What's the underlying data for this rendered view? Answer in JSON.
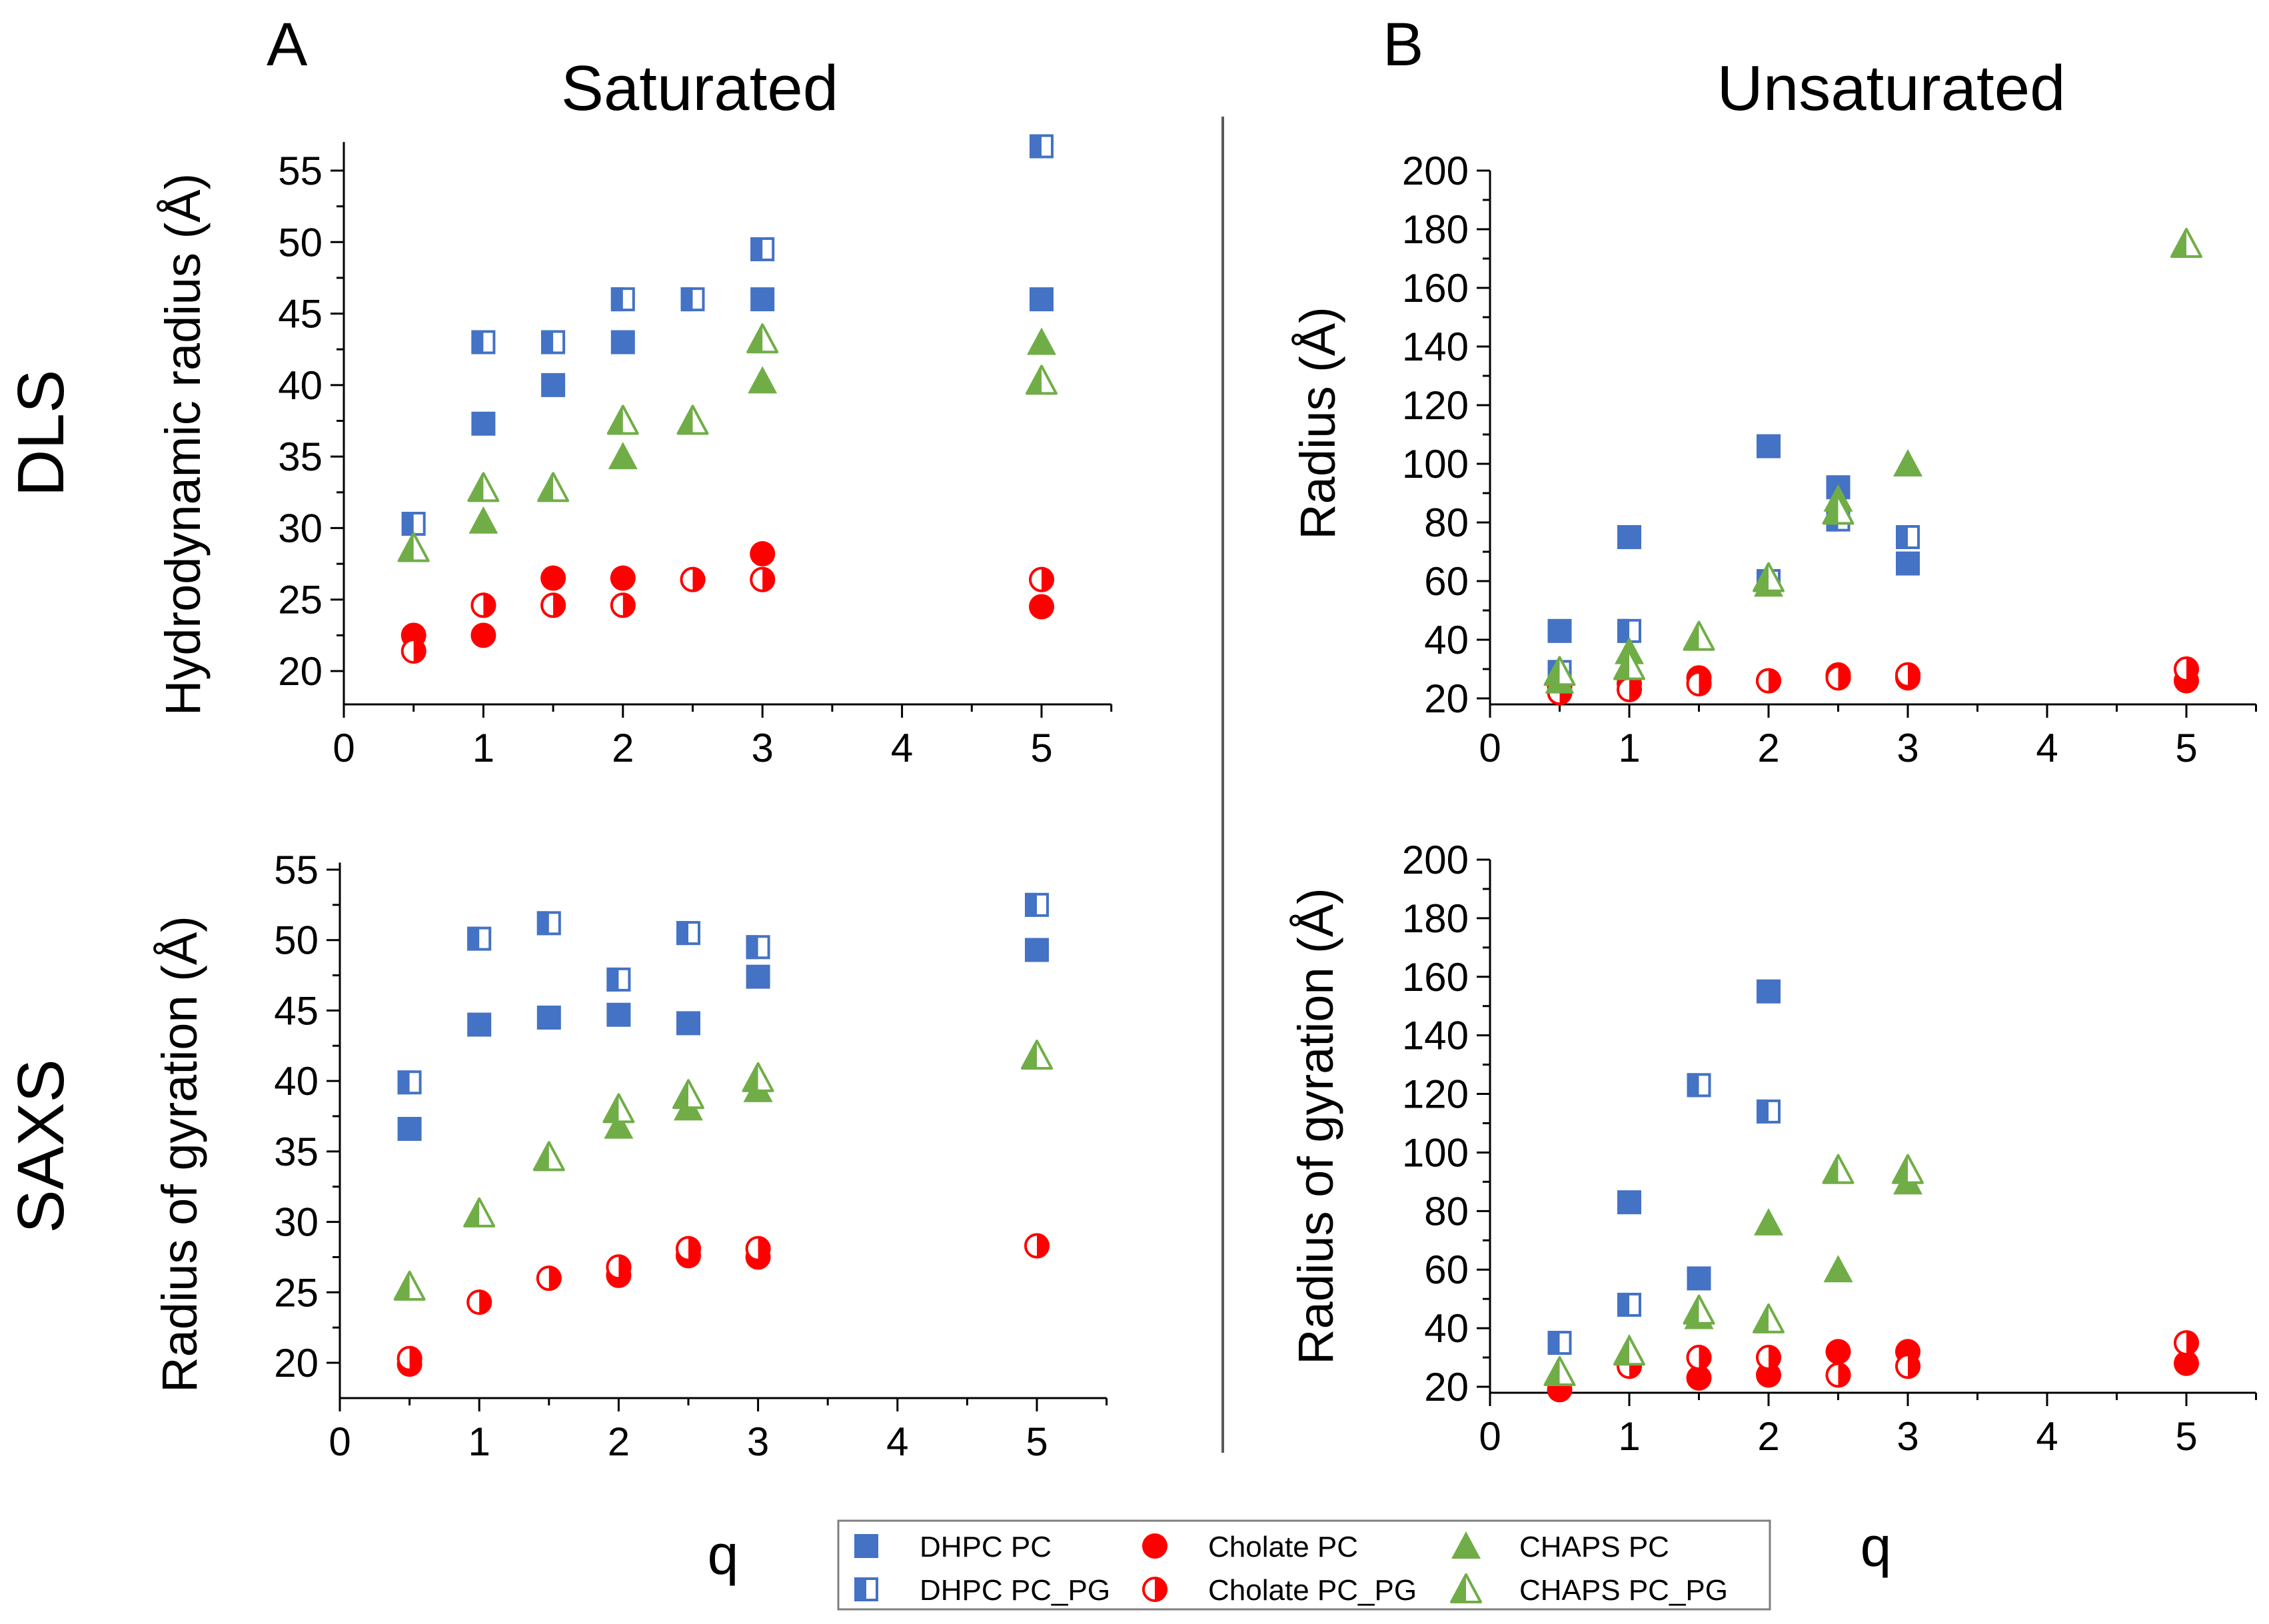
{
  "colors": {
    "dhpc": "#4472C4",
    "cholate": "#FF0000",
    "chaps": "#70AD47",
    "axis": "#000000",
    "divider": "#595959"
  },
  "panel_letters": [
    "A",
    "B"
  ],
  "column_titles": [
    "Saturated",
    "Unsaturated"
  ],
  "row_labels": [
    "DLS",
    "SAXS"
  ],
  "x_axis_label": "q",
  "legend": {
    "entries": [
      {
        "label": "DHPC PC",
        "marker": "filled-square",
        "color_key": "dhpc"
      },
      {
        "label": "DHPC PC_PG",
        "marker": "half-square",
        "color_key": "dhpc"
      },
      {
        "label": "Cholate PC",
        "marker": "filled-circle",
        "color_key": "cholate"
      },
      {
        "label": "Cholate PC_PG",
        "marker": "half-circle",
        "color_key": "cholate"
      },
      {
        "label": "CHAPS PC",
        "marker": "filled-triangle",
        "color_key": "chaps"
      },
      {
        "label": "CHAPS PC_PG",
        "marker": "half-triangle",
        "color_key": "chaps"
      }
    ]
  },
  "chart_data": [
    {
      "id": "dls-saturated",
      "type": "scatter",
      "title": "Saturated",
      "row": "DLS",
      "xlabel": "q",
      "ylabel": "Hydrodynamic radius (Å)",
      "xlim": [
        0,
        5.5
      ],
      "ylim": [
        17.5,
        57
      ],
      "xticks": [
        0,
        1,
        2,
        3,
        4,
        5
      ],
      "yticks": [
        20,
        25,
        30,
        35,
        40,
        45,
        50,
        55
      ],
      "series": [
        {
          "name": "DHPC PC",
          "x": [
            1,
            1.5,
            2,
            3,
            5
          ],
          "y": [
            37.3,
            40,
            43,
            46,
            46
          ]
        },
        {
          "name": "DHPC PC_PG",
          "x": [
            0.5,
            1,
            1.5,
            2,
            2.5,
            3,
            5
          ],
          "y": [
            30.3,
            43,
            43,
            46,
            46,
            49.5,
            56.7
          ]
        },
        {
          "name": "Cholate PC",
          "x": [
            0.5,
            1,
            1.5,
            2,
            3,
            5
          ],
          "y": [
            22.5,
            22.5,
            26.5,
            26.5,
            28.2,
            24.5
          ]
        },
        {
          "name": "Cholate PC_PG",
          "x": [
            0.5,
            1,
            1.5,
            2,
            2.5,
            3,
            5
          ],
          "y": [
            21.4,
            24.6,
            24.6,
            24.6,
            26.4,
            26.4,
            26.4
          ]
        },
        {
          "name": "CHAPS PC",
          "x": [
            1,
            2,
            3,
            5
          ],
          "y": [
            30.5,
            35,
            40.3,
            43
          ]
        },
        {
          "name": "CHAPS PC_PG",
          "x": [
            0.5,
            1,
            1.5,
            2,
            2.5,
            3,
            5
          ],
          "y": [
            28.6,
            32.8,
            32.8,
            37.5,
            37.5,
            43.2,
            40.3
          ]
        }
      ]
    },
    {
      "id": "dls-unsaturated",
      "type": "scatter",
      "title": "Unsaturated",
      "row": "DLS",
      "xlabel": "q",
      "ylabel": "Radius (Å)",
      "xlim": [
        0,
        5.5
      ],
      "ylim": [
        18,
        200
      ],
      "xticks": [
        0,
        1,
        2,
        3,
        4,
        5
      ],
      "yticks": [
        20,
        40,
        60,
        80,
        100,
        120,
        140,
        160,
        180,
        200
      ],
      "series": [
        {
          "name": "DHPC PC",
          "x": [
            0.5,
            1,
            2,
            2.5,
            3
          ],
          "y": [
            43,
            75,
            106,
            92,
            66
          ]
        },
        {
          "name": "DHPC PC_PG",
          "x": [
            0.5,
            1,
            2,
            2.5,
            3
          ],
          "y": [
            29,
            43,
            60,
            81,
            75
          ]
        },
        {
          "name": "Cholate PC",
          "x": [
            0.5,
            1,
            1.5,
            2,
            2.5,
            3,
            5
          ],
          "y": [
            24,
            25,
            27,
            26,
            28,
            27,
            26
          ]
        },
        {
          "name": "Cholate PC_PG",
          "x": [
            0.5,
            1,
            1.5,
            2,
            2.5,
            3,
            5
          ],
          "y": [
            22,
            23,
            25,
            26,
            27,
            28,
            30
          ]
        },
        {
          "name": "CHAPS PC",
          "x": [
            0.5,
            1,
            2,
            2.5,
            3
          ],
          "y": [
            26,
            36,
            59,
            88,
            100
          ]
        },
        {
          "name": "CHAPS PC_PG",
          "x": [
            0.5,
            1,
            1.5,
            2,
            2.5,
            5
          ],
          "y": [
            29,
            31,
            41,
            61,
            84,
            175
          ]
        }
      ]
    },
    {
      "id": "saxs-saturated",
      "type": "scatter",
      "title": "Saturated",
      "row": "SAXS",
      "xlabel": "q",
      "ylabel": "Radius of gyration (Å)",
      "xlim": [
        0,
        5.5
      ],
      "ylim": [
        17.5,
        55.5
      ],
      "xticks": [
        0,
        1,
        2,
        3,
        4,
        5
      ],
      "yticks": [
        20,
        25,
        30,
        35,
        40,
        45,
        50,
        55
      ],
      "series": [
        {
          "name": "DHPC PC",
          "x": [
            0.5,
            1,
            1.5,
            2,
            2.5,
            3,
            5
          ],
          "y": [
            36.6,
            44,
            44.5,
            44.7,
            44.1,
            47.4,
            49.3
          ]
        },
        {
          "name": "DHPC PC_PG",
          "x": [
            0.5,
            1,
            1.5,
            2,
            2.5,
            3,
            5
          ],
          "y": [
            39.9,
            50.1,
            51.2,
            47.2,
            50.5,
            49.5,
            52.5
          ]
        },
        {
          "name": "Cholate PC",
          "x": [
            0.5,
            2,
            2.5,
            3
          ],
          "y": [
            19.9,
            26.2,
            27.6,
            27.5
          ]
        },
        {
          "name": "Cholate PC_PG",
          "x": [
            0.5,
            1,
            1.5,
            2,
            2.5,
            3,
            5
          ],
          "y": [
            20.3,
            24.3,
            26,
            26.8,
            28.1,
            28.1,
            28.3
          ]
        },
        {
          "name": "CHAPS PC",
          "x": [
            1.5,
            2,
            2.5,
            3
          ],
          "y": [
            34.5,
            36.8,
            38.1,
            39.4
          ]
        },
        {
          "name": "CHAPS PC_PG",
          "x": [
            0.5,
            1,
            1.5,
            2,
            2.5,
            3,
            5
          ],
          "y": [
            25.4,
            30.6,
            34.6,
            38,
            39,
            40.2,
            41.8
          ]
        }
      ]
    },
    {
      "id": "saxs-unsaturated",
      "type": "scatter",
      "title": "Unsaturated",
      "row": "SAXS",
      "xlabel": "q",
      "ylabel": "Radius of gyration (Å)",
      "xlim": [
        0,
        5.5
      ],
      "ylim": [
        18,
        200
      ],
      "xticks": [
        0,
        1,
        2,
        3,
        4,
        5
      ],
      "yticks": [
        20,
        40,
        60,
        80,
        100,
        120,
        140,
        160,
        180,
        200
      ],
      "series": [
        {
          "name": "DHPC PC",
          "x": [
            1,
            1.5,
            2
          ],
          "y": [
            83,
            57,
            155
          ]
        },
        {
          "name": "DHPC PC_PG",
          "x": [
            0.5,
            1,
            1.5,
            2
          ],
          "y": [
            35,
            48,
            123,
            114
          ]
        },
        {
          "name": "Cholate PC",
          "x": [
            0.5,
            1.5,
            2,
            2.5,
            3,
            5
          ],
          "y": [
            19,
            23,
            24,
            32,
            32,
            28
          ]
        },
        {
          "name": "Cholate PC_PG",
          "x": [
            1,
            1.5,
            2,
            2.5,
            3,
            5
          ],
          "y": [
            27,
            30,
            30,
            24,
            27,
            35
          ]
        },
        {
          "name": "CHAPS PC",
          "x": [
            1,
            1.5,
            2,
            2.5,
            3
          ],
          "y": [
            33,
            44,
            76,
            60,
            90
          ]
        },
        {
          "name": "CHAPS PC_PG",
          "x": [
            0.5,
            1,
            1.5,
            2,
            2.5,
            3
          ],
          "y": [
            25,
            32,
            46,
            43,
            94,
            94
          ]
        }
      ]
    }
  ]
}
